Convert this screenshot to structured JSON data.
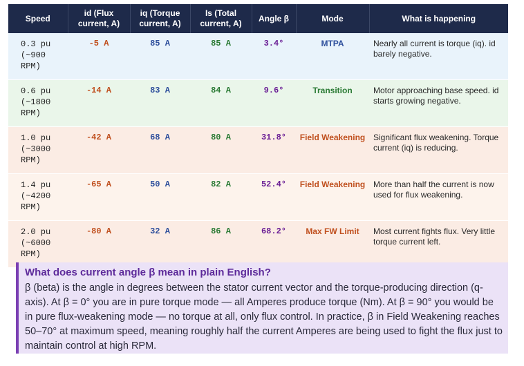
{
  "table": {
    "headers": [
      "Speed",
      "id (Flux current, A)",
      "iq (Torque current, A)",
      "Is (Total current, A)",
      "Angle β",
      "Mode",
      "What is happening"
    ],
    "rows": [
      {
        "speed": "0.3 pu",
        "rpm": "(~900",
        "rpm2": "RPM)",
        "id": "-5 A",
        "iq": "85 A",
        "is": "85 A",
        "angle": "3.4°",
        "mode": "MTPA",
        "desc": "Nearly all current is torque (iq). id barely negative."
      },
      {
        "speed": "0.6 pu",
        "rpm": "(~1800",
        "rpm2": "RPM)",
        "id": "-14 A",
        "iq": "83 A",
        "is": "84 A",
        "angle": "9.6°",
        "mode": "Transition",
        "desc": "Motor approaching base speed. id starts growing negative."
      },
      {
        "speed": "1.0 pu",
        "rpm": "(~3000",
        "rpm2": "RPM)",
        "id": "-42 A",
        "iq": "68 A",
        "is": "80 A",
        "angle": "31.8°",
        "mode": "Field Weakening",
        "desc": "Significant flux weakening. Torque current (iq) is reducing."
      },
      {
        "speed": "1.4 pu",
        "rpm": "(~4200",
        "rpm2": "RPM)",
        "id": "-65 A",
        "iq": "50 A",
        "is": "82 A",
        "angle": "52.4°",
        "mode": "Field Weakening",
        "desc": "More than half the current is now used for flux weakening."
      },
      {
        "speed": "2.0 pu",
        "rpm": "(~6000",
        "rpm2": "RPM)",
        "id": "-80 A",
        "iq": "32 A",
        "is": "86 A",
        "angle": "68.2°",
        "mode": "Max FW Limit",
        "desc": "Most current fights flux. Very little torque current left."
      }
    ]
  },
  "note": {
    "title": "What does current angle β mean in plain English?",
    "body": "β (beta) is the angle in degrees between the stator current vector and the torque-producing direction (q-axis). At β = 0° you are in pure torque mode — all Amperes produce torque (Nm). At β = 90° you would be in pure flux-weakening mode — no torque at all, only flux control. In practice, β in Field Weakening reaches 50–70° at maximum speed, meaning roughly half the current Amperes are being used to fight the flux just to maintain control at high RPM."
  }
}
